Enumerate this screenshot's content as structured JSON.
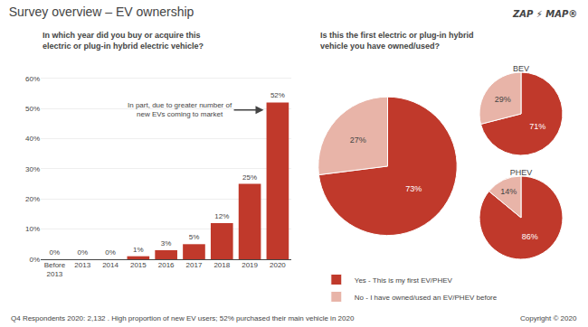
{
  "title": "Survey overview – EV ownership",
  "annotations": [
    "ZAP ⚡ MAP®",
    "Q4 Respondents 2020: 2,132 . High proportion of new EV users; 52% purchased their main vehicle in 2020",
    "Copyright © 2020"
  ],
  "chart_data": [
    {
      "type": "bar",
      "title": "In which year did you buy or acquire this\nelectric or plug-in hybrid electric vehicle?",
      "categories": [
        "Before\n2013",
        "2013",
        "2014",
        "2015",
        "2016",
        "2017",
        "2018",
        "2019",
        "2020"
      ],
      "values": [
        0,
        0,
        0,
        1,
        3,
        5,
        12,
        25,
        52
      ],
      "value_labels": [
        "0%",
        "0%",
        "0%",
        "1%",
        "3%",
        "5%",
        "12%",
        "25%",
        "52%"
      ],
      "data_labels": true,
      "color": "#c0392b",
      "ylim": [
        0,
        65
      ],
      "yticks": [
        {
          "value": 0,
          "label": "0%"
        },
        {
          "value": 10,
          "label": "10%"
        },
        {
          "value": 20,
          "label": "20%"
        },
        {
          "value": 30,
          "label": "30%"
        },
        {
          "value": 40,
          "label": "40%"
        },
        {
          "value": 50,
          "label": "50%"
        },
        {
          "value": 60,
          "label": "60%"
        }
      ],
      "grid": true,
      "annotations": [
        "In part, due to greater number of\nnew EVs coming to market"
      ]
    },
    {
      "type": "pie",
      "title": "Is this the first electric or plug-in hybrid\nvehicle you have owned/used?",
      "categories": [
        "Yes - This is my first EV/PHEV",
        "No - I have owned/used an EV/PHEV before"
      ],
      "values": [
        73,
        27
      ],
      "value_labels": [
        "73%",
        "27%"
      ],
      "data_labels": true,
      "colors": [
        "#c0392b",
        "#e8b4a8"
      ],
      "legend": "bottom"
    },
    {
      "type": "pie",
      "title": "BEV",
      "categories": [
        "Yes - This is my first EV/PHEV",
        "No - I have owned/used an EV/PHEV before"
      ],
      "values": [
        71,
        29
      ],
      "value_labels": [
        "71%",
        "29%"
      ],
      "data_labels": true,
      "colors": [
        "#c0392b",
        "#e8b4a8"
      ]
    },
    {
      "type": "pie",
      "title": "PHEV",
      "categories": [
        "Yes - This is my first EV/PHEV",
        "No - I have owned/used an EV/PHEV before"
      ],
      "values": [
        86,
        14
      ],
      "value_labels": [
        "86%",
        "14%"
      ],
      "data_labels": true,
      "colors": [
        "#c0392b",
        "#e8b4a8"
      ]
    }
  ]
}
